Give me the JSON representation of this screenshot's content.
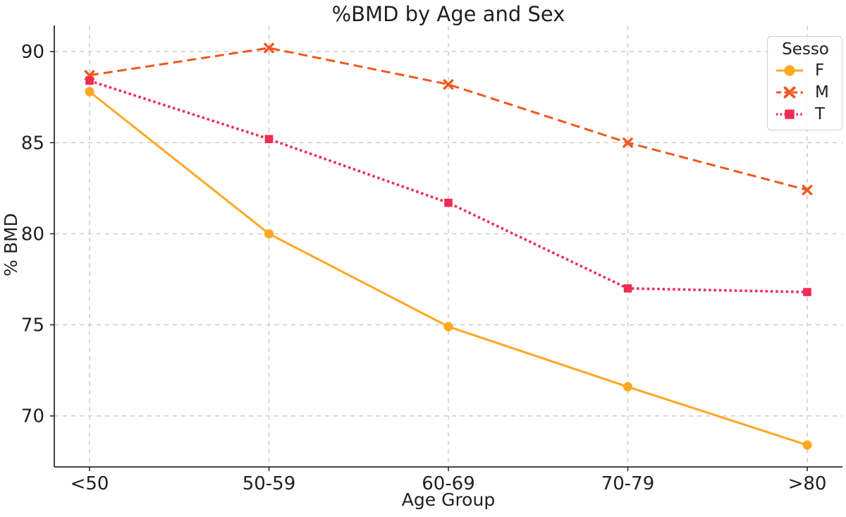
{
  "style": {
    "background": "#ffffff",
    "text_color": "#1f1f1f",
    "grid_color": "#c9c9c9",
    "spine_color": "#2b2b2b",
    "legend_border_color": "#cfcfcf"
  },
  "chart_data": {
    "type": "line",
    "title": "%BMD by Age and Sex",
    "xlabel": "Age Group",
    "ylabel": "% BMD",
    "categories": [
      "<50",
      "50-59",
      "60-69",
      "70-79",
      ">80"
    ],
    "series": [
      {
        "name": "F",
        "values": [
          87.8,
          80.0,
          74.9,
          71.6,
          68.4
        ],
        "color": "#FFA722",
        "linestyle": "solid",
        "marker": "circle"
      },
      {
        "name": "M",
        "values": [
          88.7,
          90.2,
          88.2,
          85.0,
          82.4
        ],
        "color": "#F2571E",
        "linestyle": "dashed",
        "marker": "x"
      },
      {
        "name": "T",
        "values": [
          88.4,
          85.2,
          81.7,
          77.0,
          76.8
        ],
        "color": "#ED2B56",
        "linestyle": "dotted",
        "marker": "square"
      }
    ],
    "yticks": [
      70,
      75,
      80,
      85,
      90
    ],
    "ylim": [
      67.2,
      91.4
    ],
    "grid": true,
    "legend": {
      "title": "Sesso",
      "position": "upper right"
    }
  }
}
